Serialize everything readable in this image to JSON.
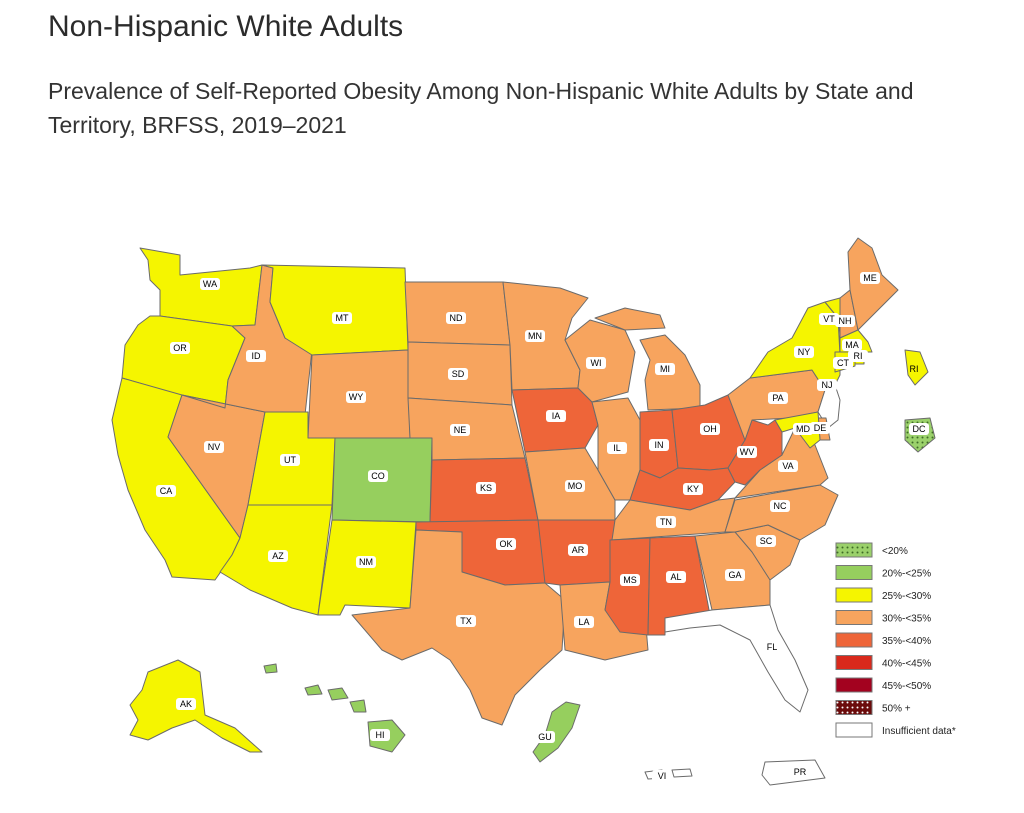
{
  "page": {
    "heading": "Non-Hispanic White Adults",
    "subtitle": "Prevalence of Self-Reported Obesity Among Non-Hispanic White Adults by State and Territory, BRFSS, 2019–2021"
  },
  "legend": [
    {
      "key": "lt20",
      "label": "<20%",
      "color": "#9bd16b",
      "dotted": true
    },
    {
      "key": "20to25",
      "label": "20%-<25%",
      "color": "#96cf5e",
      "dotted": false
    },
    {
      "key": "25to30",
      "label": "25%-<30%",
      "color": "#f5f500",
      "dotted": false
    },
    {
      "key": "30to35",
      "label": "30%-<35%",
      "color": "#f7a45e",
      "dotted": false
    },
    {
      "key": "35to40",
      "label": "35%-<40%",
      "color": "#ee6539",
      "dotted": false
    },
    {
      "key": "40to45",
      "label": "40%-<45%",
      "color": "#d9291c",
      "dotted": false
    },
    {
      "key": "45to50",
      "label": "45%-<50%",
      "color": "#a3021f",
      "dotted": false
    },
    {
      "key": "50plus",
      "label": "50% +",
      "color": "#6b0b0b",
      "dotted": true
    },
    {
      "key": "insufficient",
      "label": "Insufficient data*",
      "color": "#ffffff",
      "dotted": false
    }
  ],
  "states": [
    {
      "abbr": "WA",
      "category": "25to30"
    },
    {
      "abbr": "OR",
      "category": "25to30"
    },
    {
      "abbr": "CA",
      "category": "25to30"
    },
    {
      "abbr": "NV",
      "category": "30to35"
    },
    {
      "abbr": "ID",
      "category": "30to35"
    },
    {
      "abbr": "MT",
      "category": "25to30"
    },
    {
      "abbr": "WY",
      "category": "30to35"
    },
    {
      "abbr": "UT",
      "category": "25to30"
    },
    {
      "abbr": "AZ",
      "category": "25to30"
    },
    {
      "abbr": "CO",
      "category": "20to25"
    },
    {
      "abbr": "NM",
      "category": "25to30"
    },
    {
      "abbr": "ND",
      "category": "30to35"
    },
    {
      "abbr": "SD",
      "category": "30to35"
    },
    {
      "abbr": "NE",
      "category": "30to35"
    },
    {
      "abbr": "KS",
      "category": "35to40"
    },
    {
      "abbr": "OK",
      "category": "35to40"
    },
    {
      "abbr": "TX",
      "category": "30to35"
    },
    {
      "abbr": "MN",
      "category": "30to35"
    },
    {
      "abbr": "IA",
      "category": "35to40"
    },
    {
      "abbr": "MO",
      "category": "30to35"
    },
    {
      "abbr": "AR",
      "category": "35to40"
    },
    {
      "abbr": "LA",
      "category": "30to35"
    },
    {
      "abbr": "WI",
      "category": "30to35"
    },
    {
      "abbr": "IL",
      "category": "30to35"
    },
    {
      "abbr": "MI",
      "category": "30to35"
    },
    {
      "abbr": "IN",
      "category": "35to40"
    },
    {
      "abbr": "OH",
      "category": "35to40"
    },
    {
      "abbr": "KY",
      "category": "35to40"
    },
    {
      "abbr": "TN",
      "category": "30to35"
    },
    {
      "abbr": "MS",
      "category": "35to40"
    },
    {
      "abbr": "AL",
      "category": "35to40"
    },
    {
      "abbr": "GA",
      "category": "30to35"
    },
    {
      "abbr": "FL",
      "category": "insufficient"
    },
    {
      "abbr": "SC",
      "category": "30to35"
    },
    {
      "abbr": "NC",
      "category": "30to35"
    },
    {
      "abbr": "VA",
      "category": "30to35"
    },
    {
      "abbr": "WV",
      "category": "35to40"
    },
    {
      "abbr": "PA",
      "category": "30to35"
    },
    {
      "abbr": "NY",
      "category": "25to30"
    },
    {
      "abbr": "VT",
      "category": "25to30"
    },
    {
      "abbr": "NH",
      "category": "30to35"
    },
    {
      "abbr": "ME",
      "category": "30to35"
    },
    {
      "abbr": "MA",
      "category": "25to30"
    },
    {
      "abbr": "RI",
      "category": "25to30"
    },
    {
      "abbr": "CT",
      "category": "25to30"
    },
    {
      "abbr": "NJ",
      "category": "insufficient"
    },
    {
      "abbr": "DE",
      "category": "30to35"
    },
    {
      "abbr": "MD",
      "category": "25to30"
    },
    {
      "abbr": "DC",
      "category": "lt20"
    },
    {
      "abbr": "AK",
      "category": "25to30"
    },
    {
      "abbr": "HI",
      "category": "20to25"
    },
    {
      "abbr": "GU",
      "category": "20to25"
    },
    {
      "abbr": "PR",
      "category": "insufficient"
    },
    {
      "abbr": "VI",
      "category": "insufficient"
    }
  ]
}
